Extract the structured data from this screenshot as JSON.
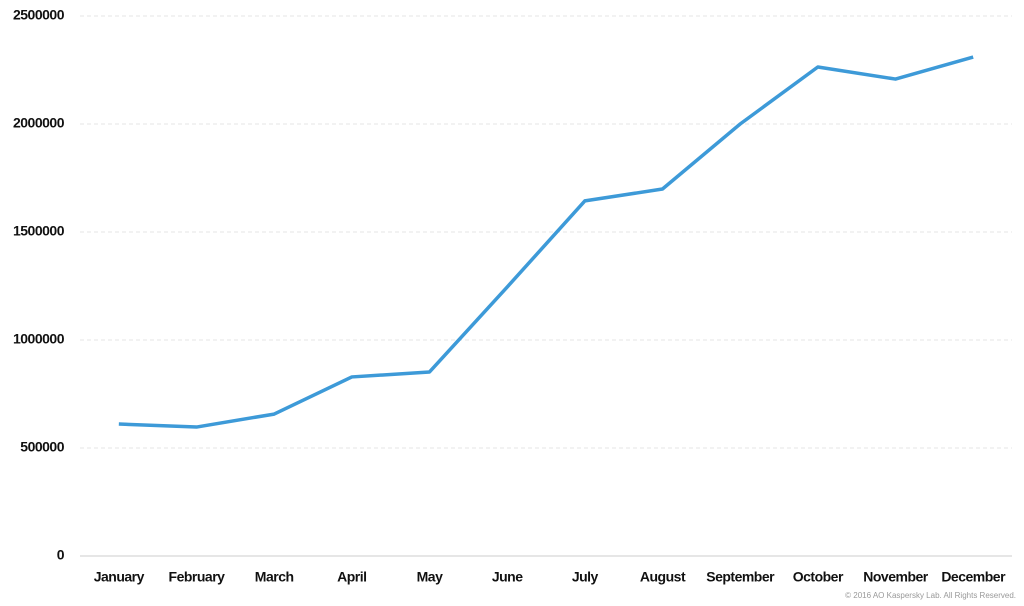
{
  "chart_data": {
    "type": "line",
    "categories": [
      "January",
      "February",
      "March",
      "April",
      "May",
      "June",
      "July",
      "August",
      "September",
      "October",
      "November",
      "December"
    ],
    "series": [
      {
        "color": "#3d9ad8",
        "values": [
          611000,
          597000,
          657000,
          829000,
          852000,
          1245000,
          1644000,
          1699000,
          2000000,
          2264000,
          2208000,
          2310000
        ]
      }
    ],
    "ylim": [
      0,
      2500000
    ],
    "yticks": [
      0,
      500000,
      1000000,
      1500000,
      2000000,
      2500000
    ],
    "grid": true,
    "footnote": "© 2016 AO Kaspersky Lab. All Rights Reserved."
  }
}
